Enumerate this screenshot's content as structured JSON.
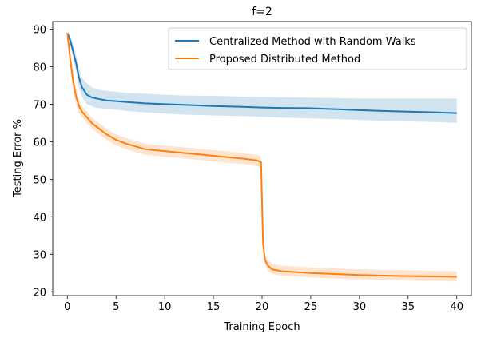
{
  "chart_data": {
    "type": "line",
    "title": "f=2",
    "xlabel": "Training Epoch",
    "ylabel": "Testing Error %",
    "xlim": [
      -1.5,
      41.5
    ],
    "ylim": [
      19,
      92
    ],
    "xticks": [
      0,
      5,
      10,
      15,
      20,
      25,
      30,
      35,
      40
    ],
    "yticks": [
      20,
      30,
      40,
      50,
      60,
      70,
      80,
      90
    ],
    "legend_position": "top-right",
    "grid": false,
    "series": [
      {
        "name": "Centralized Method with Random Walks",
        "color": "#1f77b4",
        "x": [
          0,
          0.3,
          0.6,
          0.9,
          1.2,
          1.5,
          2,
          2.5,
          3,
          4,
          5,
          6,
          8,
          10,
          12,
          15,
          18,
          20,
          22,
          25,
          28,
          30,
          32,
          35,
          38,
          40
        ],
        "values": [
          89,
          87,
          84,
          81,
          77,
          74.5,
          72.5,
          71.8,
          71.5,
          71,
          70.8,
          70.6,
          70.2,
          70,
          69.8,
          69.5,
          69.3,
          69.1,
          69,
          68.9,
          68.6,
          68.4,
          68.2,
          68,
          67.8,
          67.6
        ],
        "upper": [
          89,
          88,
          86,
          83,
          79.5,
          77,
          75.5,
          74.5,
          74,
          73.5,
          73.3,
          73,
          72.8,
          72.5,
          72.3,
          72.2,
          72,
          71.9,
          71.8,
          71.7,
          71.6,
          71.5,
          71.5,
          71.5,
          71.5,
          71.5
        ],
        "lower": [
          89,
          86,
          82,
          79,
          74.5,
          72,
          70,
          69.5,
          69,
          68.8,
          68.5,
          68.2,
          67.8,
          67.5,
          67.2,
          67,
          66.8,
          66.6,
          66.4,
          66.2,
          66,
          65.8,
          65.6,
          65.4,
          65.2,
          65
        ]
      },
      {
        "name": "Proposed Distributed Method",
        "color": "#ff7f0e",
        "x": [
          0,
          0.3,
          0.6,
          0.9,
          1.2,
          1.5,
          2,
          2.5,
          3,
          4,
          5,
          6,
          8,
          10,
          12,
          14,
          16,
          18,
          19.5,
          19.9,
          20.1,
          20.3,
          20.6,
          21,
          22,
          25,
          28,
          30,
          33,
          35,
          38,
          40
        ],
        "values": [
          89,
          82,
          76,
          72,
          69.5,
          68,
          66.5,
          65,
          64,
          62,
          60.5,
          59.5,
          58,
          57.5,
          57,
          56.5,
          56,
          55.5,
          55,
          54.5,
          33,
          28.5,
          27,
          26,
          25.5,
          25,
          24.7,
          24.5,
          24.3,
          24.2,
          24.1,
          24
        ],
        "upper": [
          89,
          84,
          78.5,
          74,
          71.5,
          69.5,
          68,
          66.5,
          65.5,
          63.5,
          62,
          61,
          59.5,
          59,
          58.5,
          58,
          57.5,
          57,
          56.5,
          56,
          34.5,
          30,
          28.5,
          27.5,
          27,
          26.5,
          26.2,
          26,
          25.8,
          25.7,
          25.6,
          25.5
        ],
        "lower": [
          89,
          80,
          73.5,
          70,
          67.5,
          66.5,
          65,
          63.5,
          62.5,
          60.5,
          59,
          58,
          56.5,
          56,
          55.5,
          55,
          54.5,
          54,
          53.5,
          53,
          31.5,
          27,
          25.5,
          24.8,
          24.3,
          23.8,
          23.5,
          23.3,
          23.1,
          23,
          22.9,
          22.8
        ]
      }
    ]
  }
}
